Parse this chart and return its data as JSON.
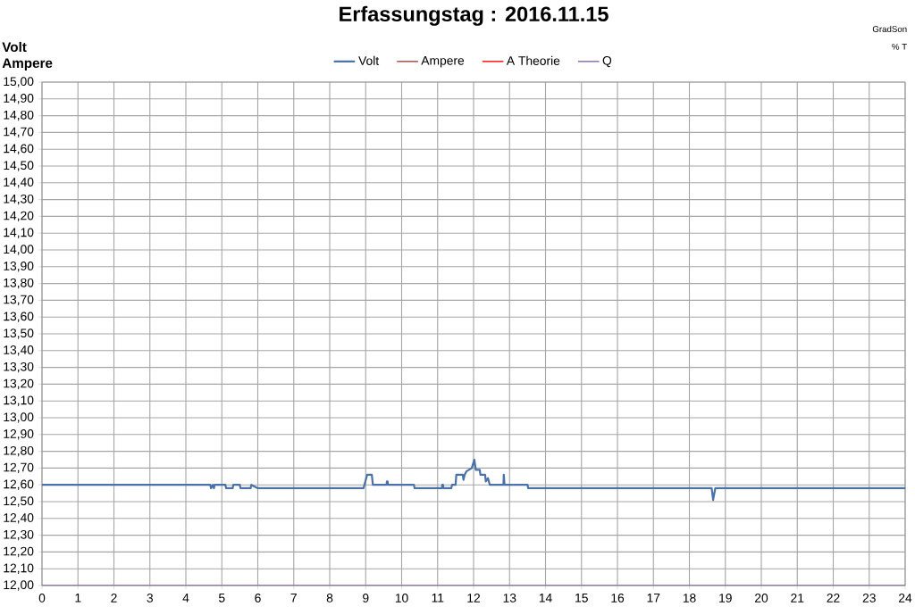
{
  "chart_data": {
    "type": "line",
    "title": "Erfassungstag  : 2016.11.15",
    "ylabel": "Volt\nAmpere",
    "annotations": [
      "GradSon",
      "% T"
    ],
    "xlim": [
      0,
      24
    ],
    "xticks": [
      0,
      1,
      2,
      3,
      4,
      5,
      6,
      7,
      8,
      9,
      10,
      11,
      12,
      13,
      14,
      15,
      16,
      17,
      18,
      19,
      20,
      21,
      22,
      23,
      24
    ],
    "ylim": [
      12.0,
      15.0
    ],
    "yticks": [
      {
        "value": 12.0,
        "label": "12,00"
      },
      {
        "value": 12.1,
        "label": "12,10"
      },
      {
        "value": 12.2,
        "label": "12,20"
      },
      {
        "value": 12.3,
        "label": "12,30"
      },
      {
        "value": 12.4,
        "label": "12,40"
      },
      {
        "value": 12.5,
        "label": "12,50"
      },
      {
        "value": 12.6,
        "label": "12,60"
      },
      {
        "value": 12.7,
        "label": "12,70"
      },
      {
        "value": 12.8,
        "label": "12,80"
      },
      {
        "value": 12.9,
        "label": "12,90"
      },
      {
        "value": 13.0,
        "label": "13,00"
      },
      {
        "value": 13.1,
        "label": "13,10"
      },
      {
        "value": 13.2,
        "label": "13,20"
      },
      {
        "value": 13.3,
        "label": "13,30"
      },
      {
        "value": 13.4,
        "label": "13,40"
      },
      {
        "value": 13.5,
        "label": "13,50"
      },
      {
        "value": 13.6,
        "label": "13,60"
      },
      {
        "value": 13.7,
        "label": "13,70"
      },
      {
        "value": 13.8,
        "label": "13,80"
      },
      {
        "value": 13.9,
        "label": "13,90"
      },
      {
        "value": 14.0,
        "label": "14,00"
      },
      {
        "value": 14.1,
        "label": "14,10"
      },
      {
        "value": 14.2,
        "label": "14,20"
      },
      {
        "value": 14.3,
        "label": "14,30"
      },
      {
        "value": 14.4,
        "label": "14,40"
      },
      {
        "value": 14.5,
        "label": "14,50"
      },
      {
        "value": 14.6,
        "label": "14,60"
      },
      {
        "value": 14.7,
        "label": "14,70"
      },
      {
        "value": 14.8,
        "label": "14,80"
      },
      {
        "value": 14.9,
        "label": "14,90"
      },
      {
        "value": 15.0,
        "label": "15,00"
      }
    ],
    "grid": true,
    "legend": "top",
    "marker": "none",
    "line_style": "solid",
    "series": [
      {
        "name": "Volt",
        "color": "#4a72a8",
        "x": [
          0,
          4.68,
          4.7,
          4.75,
          4.78,
          4.8,
          5.1,
          5.12,
          5.3,
          5.32,
          5.5,
          5.52,
          5.8,
          5.82,
          6.0,
          8.94,
          9.04,
          9.17,
          9.2,
          9.58,
          9.59,
          9.61,
          9.62,
          10.34,
          10.36,
          11.12,
          11.13,
          11.15,
          11.16,
          11.38,
          11.4,
          11.5,
          11.52,
          11.7,
          11.72,
          11.75,
          11.8,
          11.95,
          12.02,
          12.06,
          12.17,
          12.19,
          12.32,
          12.34,
          12.4,
          12.45,
          12.5,
          12.83,
          12.84,
          12.86,
          13.5,
          13.52,
          18.62,
          18.66,
          18.72,
          24
        ],
        "values": [
          12.6,
          12.6,
          12.58,
          12.6,
          12.58,
          12.6,
          12.6,
          12.58,
          12.58,
          12.6,
          12.6,
          12.58,
          12.58,
          12.6,
          12.58,
          12.58,
          12.66,
          12.66,
          12.6,
          12.6,
          12.62,
          12.62,
          12.6,
          12.6,
          12.58,
          12.58,
          12.6,
          12.6,
          12.58,
          12.58,
          12.6,
          12.6,
          12.66,
          12.66,
          12.63,
          12.66,
          12.68,
          12.7,
          12.75,
          12.69,
          12.69,
          12.66,
          12.66,
          12.62,
          12.64,
          12.6,
          12.6,
          12.6,
          12.66,
          12.6,
          12.6,
          12.58,
          12.58,
          12.51,
          12.58,
          12.58
        ]
      },
      {
        "name": "Ampere",
        "color": "#a0403c",
        "values": [
          null
        ]
      },
      {
        "name": "A Theorie",
        "color": "#ff0000",
        "values": [
          null
        ]
      },
      {
        "name": "Q",
        "color": "#8064a2",
        "x": [
          0,
          24
        ],
        "values": [
          12.0,
          12.0
        ]
      }
    ]
  }
}
